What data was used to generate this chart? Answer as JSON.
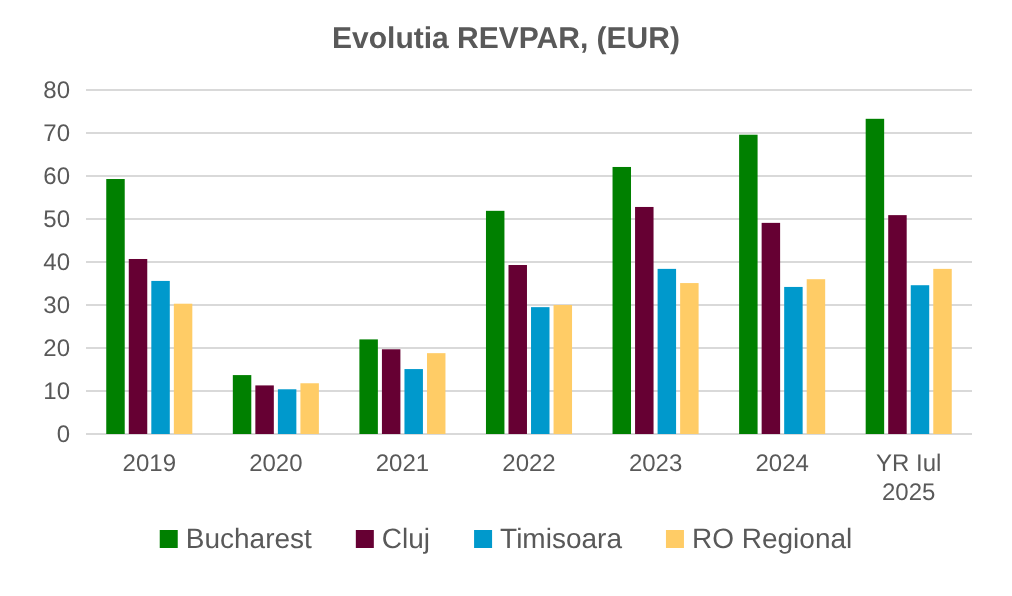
{
  "chart_data": {
    "type": "bar",
    "title": "Evolutia REVPAR, (EUR)",
    "categories": [
      "2019",
      "2020",
      "2021",
      "2022",
      "2023",
      "2024",
      "YR Iul 2025"
    ],
    "series": [
      {
        "name": "Bucharest",
        "color": "#008000",
        "values": [
          59.3,
          13.7,
          22,
          51.9,
          62.1,
          69.6,
          73.3
        ]
      },
      {
        "name": "Cluj",
        "color": "#660033",
        "values": [
          40.7,
          11.3,
          19.7,
          39.3,
          52.8,
          49.1,
          50.9
        ]
      },
      {
        "name": "Timisoara",
        "color": "#0099cc",
        "values": [
          35.6,
          10.4,
          15.1,
          29.5,
          38.4,
          34.2,
          34.6
        ]
      },
      {
        "name": "RO Regional",
        "color": "#ffcc66",
        "values": [
          30.3,
          11.8,
          18.8,
          30,
          35.1,
          36,
          38.4
        ]
      }
    ],
    "ylim": [
      0,
      80
    ],
    "yticks": [
      0,
      10,
      20,
      30,
      40,
      50,
      60,
      70,
      80
    ],
    "grid": "y",
    "legend": "bottom"
  }
}
